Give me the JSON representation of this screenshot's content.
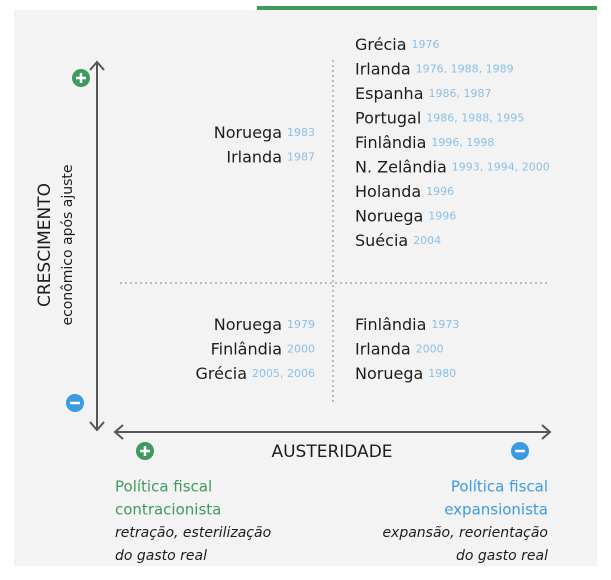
{
  "y_axis": {
    "title": "CRESCIMENTO",
    "subtitle": "econômico após ajuste"
  },
  "x_axis": {
    "title": "AUSTERIDADE"
  },
  "quadrants": {
    "top_left": [
      {
        "country": "Noruega",
        "years": "1983"
      },
      {
        "country": "Irlanda",
        "years": "1987"
      }
    ],
    "top_right": [
      {
        "country": "Grécia",
        "years": "1976"
      },
      {
        "country": "Irlanda",
        "years": "1976, 1988, 1989"
      },
      {
        "country": "Espanha",
        "years": "1986, 1987"
      },
      {
        "country": "Portugal",
        "years": "1986, 1988, 1995"
      },
      {
        "country": "Finlândia",
        "years": "1996, 1998"
      },
      {
        "country": "N. Zelândia",
        "years": "1993, 1994, 2000"
      },
      {
        "country": "Holanda",
        "years": "1996"
      },
      {
        "country": "Noruega",
        "years": "1996"
      },
      {
        "country": "Suécia",
        "years": "2004"
      }
    ],
    "bottom_left": [
      {
        "country": "Noruega",
        "years": "1979"
      },
      {
        "country": "Finlândia",
        "years": "2000"
      },
      {
        "country": "Grécia",
        "years": "2005, 2006"
      }
    ],
    "bottom_right": [
      {
        "country": "Finlândia",
        "years": "1973"
      },
      {
        "country": "Irlanda",
        "years": "2000"
      },
      {
        "country": "Noruega",
        "years": "1980"
      }
    ]
  },
  "left_note": {
    "title": [
      "Política fiscal",
      "contracionista"
    ],
    "description": [
      "retração, esterilização",
      "do gasto real"
    ]
  },
  "right_note": {
    "title": [
      "Política fiscal",
      "expansionista"
    ],
    "description": [
      "expansão, reorientação",
      "do gasto real"
    ]
  }
}
